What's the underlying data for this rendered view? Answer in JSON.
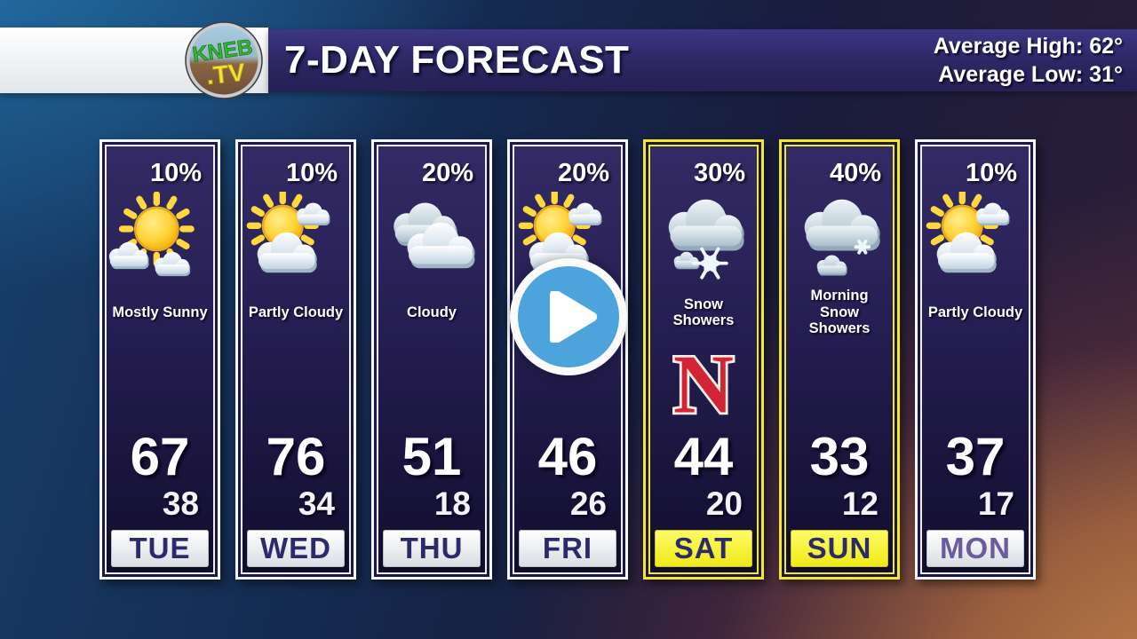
{
  "header": {
    "logo_line1": "KNEB",
    "logo_line2": ".TV",
    "title": "7-DAY FORECAST",
    "average_high": "Average High: 62°",
    "average_low": "Average Low: 31°"
  },
  "video": {
    "play_icon": "play-triangle"
  },
  "forecast": {
    "days": [
      {
        "day": "TUE",
        "precip": "10%",
        "condition": "Mostly Sunny",
        "icon": "mostly-sunny",
        "high": "67",
        "low": "38",
        "highlight": false
      },
      {
        "day": "WED",
        "precip": "10%",
        "condition": "Partly Cloudy",
        "icon": "partly-cloudy",
        "high": "76",
        "low": "34",
        "highlight": false
      },
      {
        "day": "THU",
        "precip": "20%",
        "condition": "Cloudy",
        "icon": "cloudy",
        "high": "51",
        "low": "18",
        "highlight": false
      },
      {
        "day": "FRI",
        "precip": "20%",
        "condition": "",
        "icon": "partly-cloudy",
        "high": "46",
        "low": "26",
        "highlight": false
      },
      {
        "day": "SAT",
        "precip": "30%",
        "condition": "Snow Showers",
        "icon": "snow-showers",
        "high": "44",
        "low": "20",
        "highlight": true,
        "badge": "N"
      },
      {
        "day": "SUN",
        "precip": "40%",
        "condition": "Morning Snow Showers",
        "icon": "morning-snow-showers",
        "high": "33",
        "low": "12",
        "highlight": true
      },
      {
        "day": "MON",
        "precip": "10%",
        "condition": "Partly Cloudy",
        "icon": "partly-cloudy",
        "high": "37",
        "low": "17",
        "highlight": false,
        "label_color": "#6b5b9e"
      }
    ]
  },
  "colors": {
    "highlight_yellow": "#f2e92e",
    "day_label_navy": "#2b2a6a",
    "mon_label_purple": "#6b5b9e",
    "nebraska_red": "#d12535",
    "play_blue": "#4da3dc",
    "banner_navy": "#322c74"
  }
}
